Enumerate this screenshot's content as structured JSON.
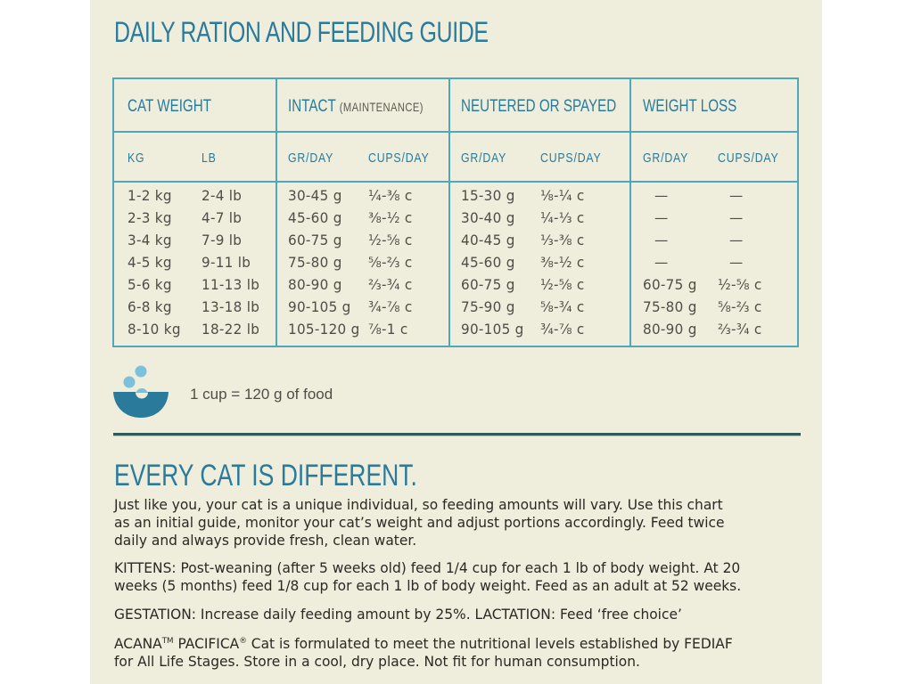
{
  "title": "DAILY RATION AND FEEDING GUIDE",
  "colors": {
    "accent": "#2a7a9c",
    "table_border": "#4ea7bd",
    "panel_bg": "#efeddb",
    "text": "#4e4d47",
    "bowl": "#2a7a9c",
    "kibble": "#7cc0dc"
  },
  "table": {
    "groups": [
      {
        "label": "CAT WEIGHT",
        "sub": ""
      },
      {
        "label": "INTACT",
        "sub": "(MAINTENANCE)"
      },
      {
        "label": "NEUTERED OR SPAYED",
        "sub": ""
      },
      {
        "label": "WEIGHT LOSS",
        "sub": ""
      }
    ],
    "subheaders": [
      "KG",
      "LB",
      "GR/DAY",
      "CUPS/DAY",
      "GR/DAY",
      "CUPS/DAY",
      "GR/DAY",
      "CUPS/DAY"
    ],
    "rows": [
      {
        "kg": "1-2 kg",
        "lb": "2-4 lb",
        "intact_gr": "30-45 g",
        "intact_cups": "¼-⅜ c",
        "neutered_gr": "15-30 g",
        "neutered_cups": "⅛-¼ c",
        "loss_gr": "—",
        "loss_cups": "—"
      },
      {
        "kg": "2-3 kg",
        "lb": "4-7 lb",
        "intact_gr": "45-60 g",
        "intact_cups": "⅜-½ c",
        "neutered_gr": "30-40 g",
        "neutered_cups": "¼-⅓ c",
        "loss_gr": "—",
        "loss_cups": "—"
      },
      {
        "kg": "3-4 kg",
        "lb": "7-9 lb",
        "intact_gr": "60-75 g",
        "intact_cups": "½-⅝ c",
        "neutered_gr": "40-45 g",
        "neutered_cups": "⅓-⅜ c",
        "loss_gr": "—",
        "loss_cups": "—"
      },
      {
        "kg": "4-5 kg",
        "lb": "9-11 lb",
        "intact_gr": "75-80 g",
        "intact_cups": "⅝-⅔ c",
        "neutered_gr": "45-60 g",
        "neutered_cups": "⅜-½ c",
        "loss_gr": "—",
        "loss_cups": "—"
      },
      {
        "kg": "5-6 kg",
        "lb": "11-13 lb",
        "intact_gr": "80-90 g",
        "intact_cups": "⅔-¾ c",
        "neutered_gr": "60-75 g",
        "neutered_cups": "½-⅝ c",
        "loss_gr": "60-75 g",
        "loss_cups": "½-⅝ c"
      },
      {
        "kg": "6-8 kg",
        "lb": "13-18 lb",
        "intact_gr": "90-105 g",
        "intact_cups": "¾-⅞ c",
        "neutered_gr": "75-90 g",
        "neutered_cups": "⅝-¾ c",
        "loss_gr": "75-80 g",
        "loss_cups": "⅝-⅔ c"
      },
      {
        "kg": "8-10 kg",
        "lb": "18-22 lb",
        "intact_gr": "105-120 g",
        "intact_cups": "⅞-1 c",
        "neutered_gr": "90-105 g",
        "neutered_cups": "¾-⅞ c",
        "loss_gr": "80-90 g",
        "loss_cups": "⅔-¾ c"
      }
    ]
  },
  "cup_note": {
    "icon": "bowl-icon",
    "text": "1 cup = 120 g of food"
  },
  "section": {
    "title": "EVERY CAT IS DIFFERENT.",
    "intro_lines": [
      "Just like you, your cat is a unique individual, so feeding amounts will vary. Use this chart",
      "as an initial guide, monitor your cat’s weight and adjust portions accordingly. Feed twice",
      "daily and always provide fresh, clean water."
    ],
    "kittens_lines": [
      "KITTENS: Post-weaning (after 5 weeks old) feed 1/4 cup for each 1 lb of body weight. At 20",
      "weeks (5 months) feed 1/8 cup for each 1 lb of body weight. Feed as an adult at 52 weeks."
    ],
    "gestation": "GESTATION: Increase daily feeding amount by 25%. LACTATION: Feed ‘free choice’",
    "brand": "ACANA",
    "tm": "TM",
    "product": " PACIFICA",
    "reg": "®",
    "statement_rest": " Cat is formulated to meet the nutritional levels established by FEDIAF",
    "statement_line2": "for All Life Stages. Store in a cool, dry place. Not fit for human consumption."
  }
}
